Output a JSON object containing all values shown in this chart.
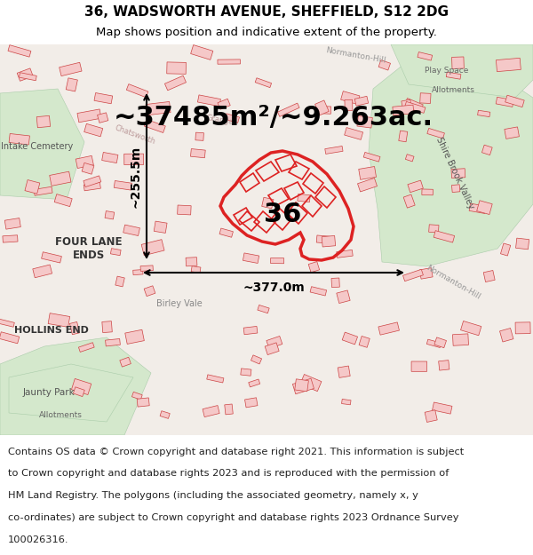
{
  "title_line1": "36, WADSWORTH AVENUE, SHEFFIELD, S12 2DG",
  "title_line2": "Map shows position and indicative extent of the property.",
  "area_text": "~37485m²/~9.263ac.",
  "dim_width": "~377.0m",
  "dim_height": "~255.5m",
  "property_number": "36",
  "footer_lines": [
    "Contains OS data © Crown copyright and database right 2021. This information is subject",
    "to Crown copyright and database rights 2023 and is reproduced with the permission of",
    "HM Land Registry. The polygons (including the associated geometry, namely x, y",
    "co-ordinates) are subject to Crown copyright and database rights 2023 Ordnance Survey",
    "100026316."
  ],
  "map_bg": "#f2ede8",
  "map_green": "#d4e8cc",
  "map_green2": "#ddeedd",
  "building_color": "#f5c8c8",
  "building_edge": "#cc4444",
  "prop_color": "#dd2222",
  "header_bg": "#ffffff",
  "footer_bg": "#ffffff",
  "title_fontsize": 11,
  "subtitle_fontsize": 9.5,
  "area_fontsize": 22,
  "dim_fontsize": 10,
  "number_fontsize": 22,
  "footer_fontsize": 8.2
}
